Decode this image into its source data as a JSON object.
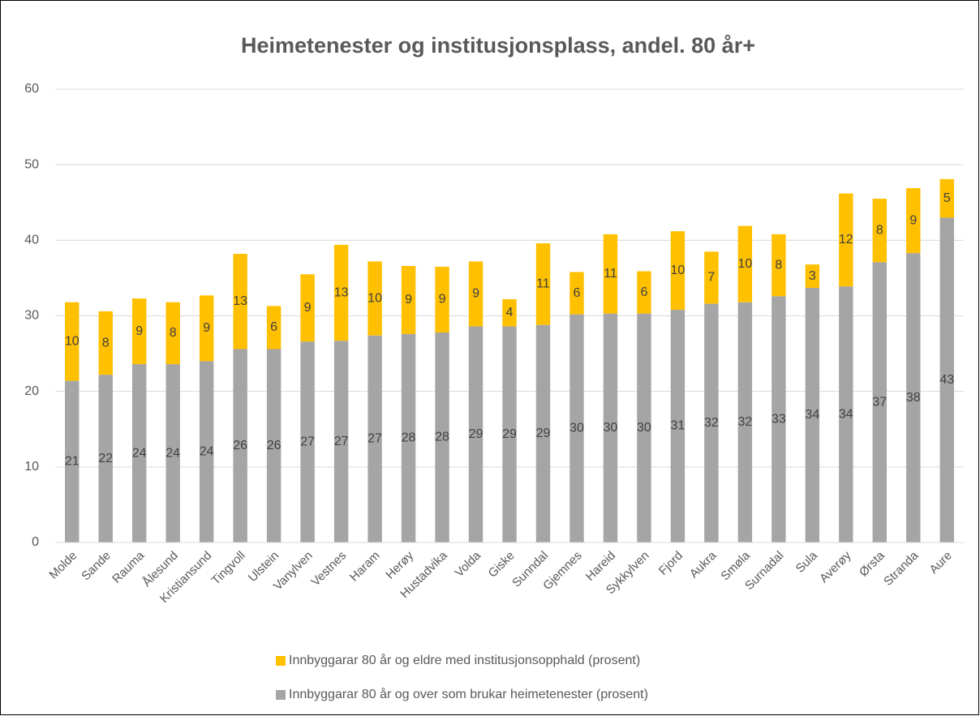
{
  "chart_data": {
    "type": "stacked_bar",
    "title": "Heimetenester og institusjonsplass, andel. 80 år+",
    "categories": [
      "Molde",
      "Sande",
      "Rauma",
      "Ålesund",
      "Kristiansund",
      "Tingvoll",
      "Ulstein",
      "Vanylven",
      "Vestnes",
      "Haram",
      "Herøy",
      "Hustadvika",
      "Volda",
      "Giske",
      "Sunndal",
      "Gjemnes",
      "Hareid",
      "Sykkylven",
      "Fjord",
      "Aukra",
      "Smøla",
      "Surnadal",
      "Sula",
      "Averøy",
      "Ørsta",
      "Stranda",
      "Aure"
    ],
    "series": [
      {
        "name": "Innbyggarar 80 år og over som brukar heimetenester (prosent)",
        "color": "#a5a5a5",
        "values": [
          21.4,
          22.2,
          23.6,
          23.6,
          24.0,
          25.6,
          25.6,
          26.6,
          26.7,
          27.4,
          27.6,
          27.8,
          28.6,
          28.6,
          28.8,
          30.2,
          30.3,
          30.3,
          30.8,
          31.6,
          31.8,
          32.6,
          33.7,
          33.9,
          37.1,
          38.3,
          43.0
        ],
        "value_labels": [
          "21",
          "22",
          "24",
          "24",
          "24",
          "26",
          "26",
          "27",
          "27",
          "27",
          "28",
          "28",
          "29",
          "29",
          "29",
          "30",
          "30",
          "30",
          "31",
          "32",
          "32",
          "33",
          "34",
          "34",
          "37",
          "38",
          "43"
        ]
      },
      {
        "name": "Innbyggarar 80 år og eldre med institusjonsopphald (prosent)",
        "color": "#ffc000",
        "values": [
          10.4,
          8.4,
          8.7,
          8.2,
          8.7,
          12.6,
          5.7,
          8.9,
          12.7,
          9.8,
          9.0,
          8.7,
          8.6,
          3.6,
          10.8,
          5.6,
          10.5,
          5.6,
          10.4,
          6.9,
          10.1,
          8.2,
          3.1,
          12.3,
          8.4,
          8.6,
          5.1
        ],
        "value_labels": [
          "10",
          "8",
          "9",
          "8",
          "9",
          "13",
          "6",
          "9",
          "13",
          "10",
          "9",
          "9",
          "9",
          "4",
          "11",
          "6",
          "11",
          "6",
          "10",
          "7",
          "10",
          "8",
          "3",
          "12",
          "8",
          "9",
          "5"
        ]
      }
    ],
    "ylim": [
      0,
      60
    ],
    "yticks": [
      0,
      10,
      20,
      30,
      40,
      50,
      60
    ],
    "grid": true,
    "legend": "bottom"
  }
}
